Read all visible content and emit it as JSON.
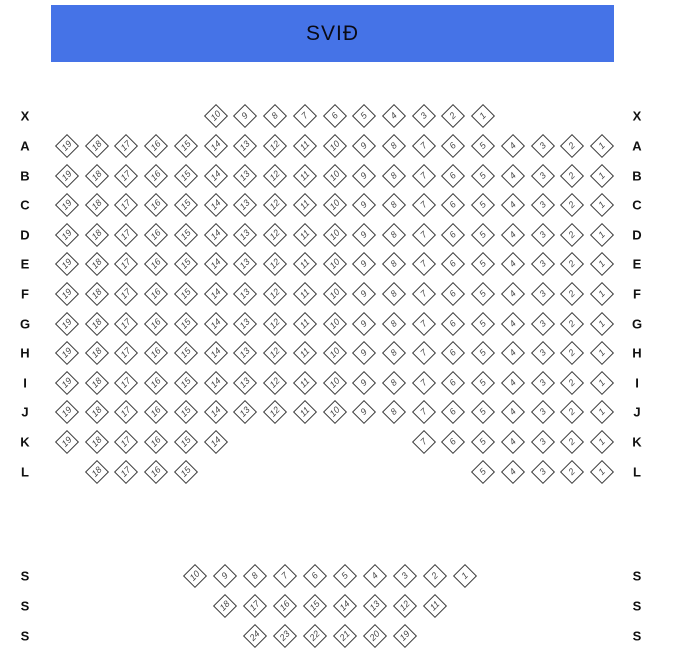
{
  "stage": {
    "label": "SVIÐ"
  },
  "colors": {
    "page_bg": "#ffffff",
    "stage_bg": "#4573E7",
    "stage_text": "#0a0a14",
    "seat_fill": "#ffffff",
    "seat_border": "#3b3b3b",
    "seat_text": "#474747",
    "row_label": "#111111"
  },
  "seatmap": {
    "main_rows": [
      {
        "label": "X",
        "groups": [
          {
            "col_start": 14,
            "seats": [
              10,
              9,
              8,
              7,
              6,
              5,
              4,
              3,
              2,
              1
            ]
          }
        ]
      },
      {
        "label": "A",
        "groups": [
          {
            "col_start": 19,
            "seats": [
              19,
              18,
              17,
              16,
              15,
              14,
              13,
              12,
              11,
              10,
              9,
              8,
              7,
              6,
              5,
              4,
              3,
              2,
              1
            ]
          }
        ]
      },
      {
        "label": "B",
        "groups": [
          {
            "col_start": 19,
            "seats": [
              19,
              18,
              17,
              16,
              15,
              14,
              13,
              12,
              11,
              10,
              9,
              8,
              7,
              6,
              5,
              4,
              3,
              2,
              1
            ]
          }
        ]
      },
      {
        "label": "C",
        "groups": [
          {
            "col_start": 19,
            "seats": [
              19,
              18,
              17,
              16,
              15,
              14,
              13,
              12,
              11,
              10,
              9,
              8,
              7,
              6,
              5,
              4,
              3,
              2,
              1
            ]
          }
        ]
      },
      {
        "label": "D",
        "groups": [
          {
            "col_start": 19,
            "seats": [
              19,
              18,
              17,
              16,
              15,
              14,
              13,
              12,
              11,
              10,
              9,
              8,
              7,
              6,
              5,
              4,
              3,
              2,
              1
            ]
          }
        ]
      },
      {
        "label": "E",
        "groups": [
          {
            "col_start": 19,
            "seats": [
              19,
              18,
              17,
              16,
              15,
              14,
              13,
              12,
              11,
              10,
              9,
              8,
              7,
              6,
              5,
              4,
              3,
              2,
              1
            ]
          }
        ]
      },
      {
        "label": "F",
        "groups": [
          {
            "col_start": 19,
            "seats": [
              19,
              18,
              17,
              16,
              15,
              14,
              13,
              12,
              11,
              10,
              9,
              8,
              7,
              6,
              5,
              4,
              3,
              2,
              1
            ]
          }
        ]
      },
      {
        "label": "G",
        "groups": [
          {
            "col_start": 19,
            "seats": [
              19,
              18,
              17,
              16,
              15,
              14,
              13,
              12,
              11,
              10,
              9,
              8,
              7,
              6,
              5,
              4,
              3,
              2,
              1
            ]
          }
        ]
      },
      {
        "label": "H",
        "groups": [
          {
            "col_start": 19,
            "seats": [
              19,
              18,
              17,
              16,
              15,
              14,
              13,
              12,
              11,
              10,
              9,
              8,
              7,
              6,
              5,
              4,
              3,
              2,
              1
            ]
          }
        ]
      },
      {
        "label": "I",
        "groups": [
          {
            "col_start": 19,
            "seats": [
              19,
              18,
              17,
              16,
              15,
              14,
              13,
              12,
              11,
              10,
              9,
              8,
              7,
              6,
              5,
              4,
              3,
              2,
              1
            ]
          }
        ]
      },
      {
        "label": "J",
        "groups": [
          {
            "col_start": 19,
            "seats": [
              19,
              18,
              17,
              16,
              15,
              14,
              13,
              12,
              11,
              10,
              9,
              8,
              7,
              6,
              5,
              4,
              3,
              2,
              1
            ]
          }
        ]
      },
      {
        "label": "K",
        "groups": [
          {
            "col_start": 19,
            "seats": [
              19,
              18,
              17,
              16,
              15,
              14
            ]
          },
          {
            "col_start": 7,
            "seats": [
              7,
              6,
              5,
              4,
              3,
              2,
              1
            ]
          }
        ]
      },
      {
        "label": "L",
        "groups": [
          {
            "col_start": 18,
            "seats": [
              18,
              17,
              16,
              15
            ]
          },
          {
            "col_start": 5,
            "seats": [
              5,
              4,
              3,
              2,
              1
            ]
          }
        ]
      }
    ],
    "balcony_rows": [
      {
        "label": "S",
        "seats": [
          10,
          9,
          8,
          7,
          6,
          5,
          4,
          3,
          2,
          1
        ]
      },
      {
        "label": "S",
        "seats": [
          18,
          17,
          16,
          15,
          14,
          13,
          12,
          11
        ]
      },
      {
        "label": "S",
        "seats": [
          24,
          23,
          22,
          21,
          20,
          19
        ]
      }
    ]
  }
}
